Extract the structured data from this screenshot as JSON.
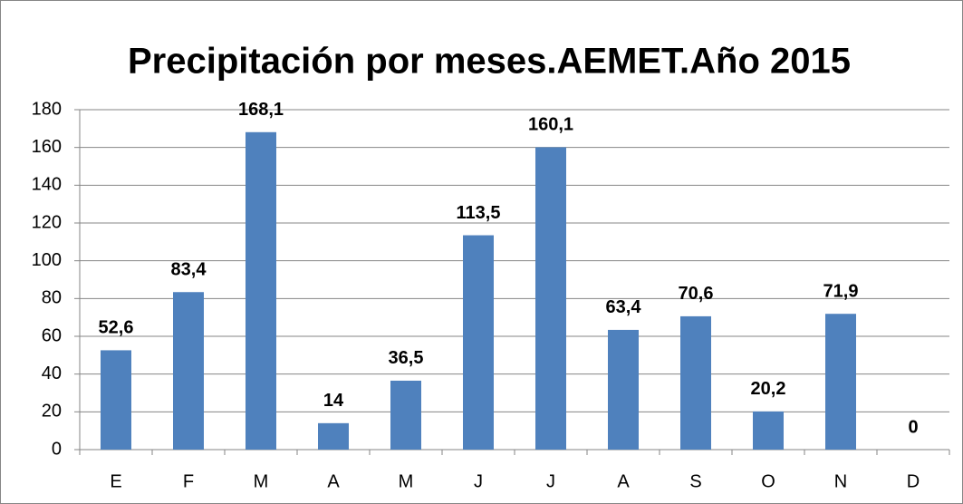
{
  "chart_data": {
    "type": "bar",
    "title": "Precipitación por meses.AEMET.Año 2015",
    "categories": [
      "E",
      "F",
      "M",
      "A",
      "M",
      "J",
      "J",
      "A",
      "S",
      "O",
      "N",
      "D"
    ],
    "values": [
      52.6,
      83.4,
      168.1,
      14,
      36.5,
      113.5,
      160.1,
      63.4,
      70.6,
      20.2,
      71.9,
      0
    ],
    "value_labels": [
      "52,6",
      "83,4",
      "168,1",
      "14",
      "36,5",
      "113,5",
      "160,1",
      "63,4",
      "70,6",
      "20,2",
      "71,9",
      "0"
    ],
    "color": "#4f81bd",
    "ylim": [
      0,
      180
    ],
    "yticks": [
      0,
      20,
      40,
      60,
      80,
      100,
      120,
      140,
      160,
      180
    ],
    "grid": true
  }
}
